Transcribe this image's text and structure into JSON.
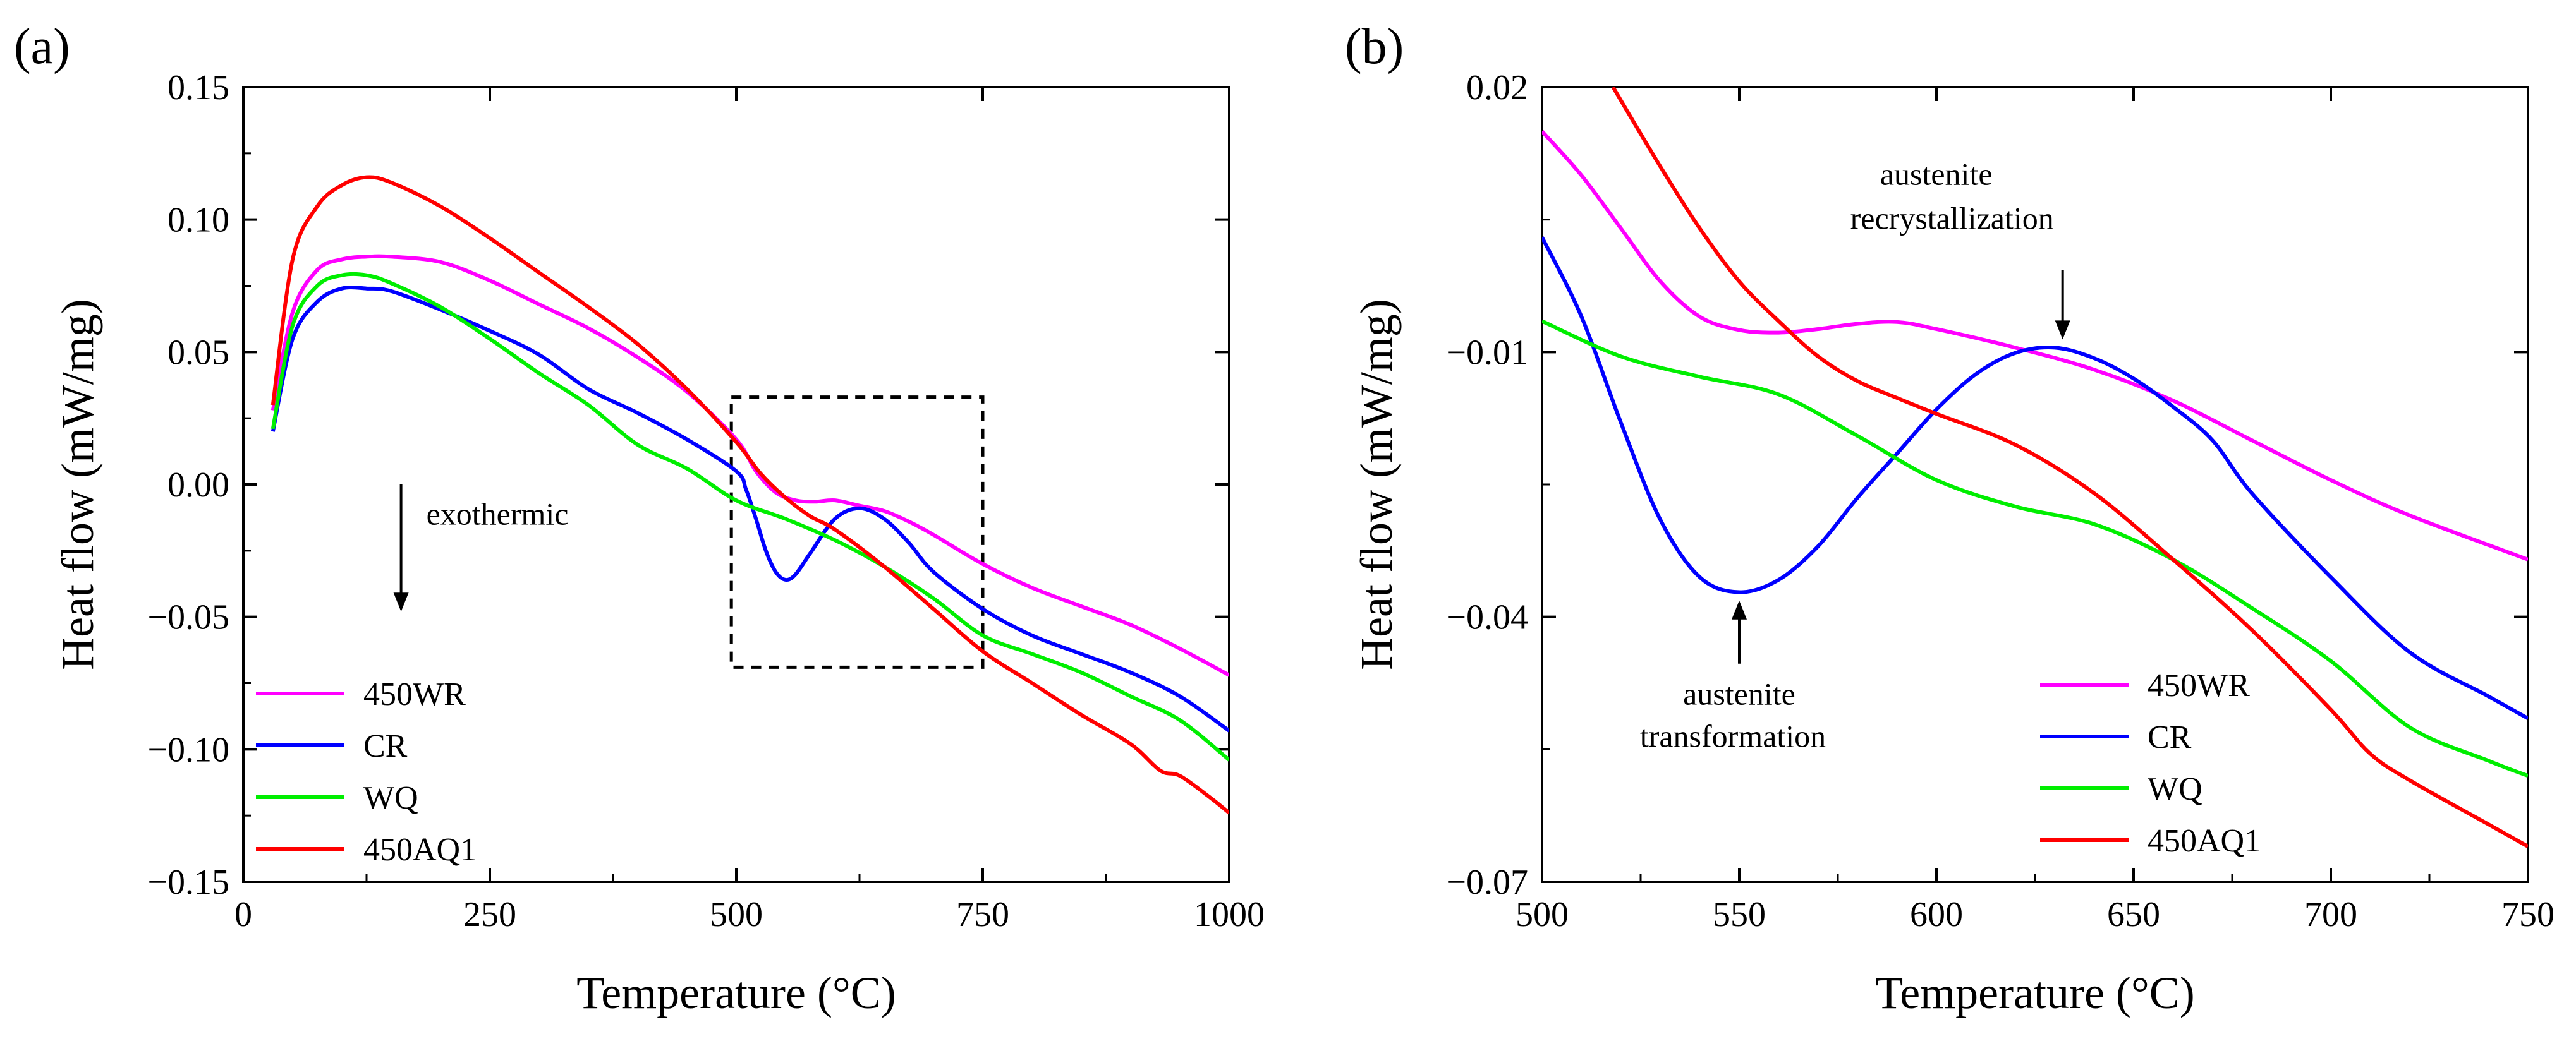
{
  "chart_data": [
    {
      "panel": "(a)",
      "type": "line",
      "xlabel": "Temperature (°C)",
      "ylabel": "Heat flow (mW/mg)",
      "xlim": [
        0,
        1000
      ],
      "ylim": [
        -0.15,
        0.15
      ],
      "x_ticks": [
        0,
        250,
        500,
        750,
        1000
      ],
      "x_tick_labels": [
        "0",
        "250",
        "500",
        "750",
        "1000"
      ],
      "y_ticks": [
        -0.15,
        -0.1,
        -0.05,
        0.0,
        0.05,
        0.1,
        0.15
      ],
      "y_tick_labels": [
        "−0.15",
        "−0.10",
        "−0.05",
        "0.00",
        "0.05",
        "0.10",
        "0.15"
      ],
      "grid": false,
      "legend_position": "bottom-left",
      "annotations": [
        {
          "text": "exothermic",
          "arrow": "down",
          "x": 160,
          "y": -0.013
        }
      ],
      "zoom_box": {
        "x": [
          495,
          750
        ],
        "y": [
          -0.069,
          0.033
        ]
      },
      "series": [
        {
          "name": "450WR",
          "color": "#ff00ff",
          "x": [
            30,
            50,
            75,
            100,
            125,
            150,
            200,
            250,
            300,
            350,
            400,
            450,
            500,
            520,
            540,
            560,
            580,
            600,
            625,
            650,
            675,
            700,
            750,
            800,
            850,
            900,
            950,
            1000
          ],
          "y": [
            0.028,
            0.065,
            0.081,
            0.085,
            0.086,
            0.086,
            0.084,
            0.077,
            0.068,
            0.059,
            0.048,
            0.035,
            0.017,
            0.005,
            -0.003,
            -0.006,
            -0.0065,
            -0.006,
            -0.008,
            -0.01,
            -0.014,
            -0.019,
            -0.03,
            -0.039,
            -0.046,
            -0.053,
            -0.062,
            -0.072
          ]
        },
        {
          "name": "CR",
          "color": "#0000ff",
          "x": [
            30,
            50,
            75,
            100,
            125,
            150,
            200,
            250,
            300,
            350,
            400,
            450,
            500,
            510,
            520,
            530,
            540,
            550,
            560,
            575,
            600,
            625,
            650,
            675,
            700,
            750,
            800,
            850,
            900,
            950,
            1000
          ],
          "y": [
            0.02,
            0.055,
            0.069,
            0.074,
            0.074,
            0.073,
            0.066,
            0.058,
            0.049,
            0.036,
            0.027,
            0.017,
            0.005,
            -0.002,
            -0.013,
            -0.025,
            -0.033,
            -0.036,
            -0.034,
            -0.026,
            -0.013,
            -0.009,
            -0.013,
            -0.022,
            -0.033,
            -0.047,
            -0.057,
            -0.064,
            -0.071,
            -0.08,
            -0.093
          ]
        },
        {
          "name": "WQ",
          "color": "#00ee00",
          "x": [
            30,
            50,
            75,
            100,
            125,
            150,
            200,
            250,
            300,
            350,
            400,
            450,
            500,
            550,
            600,
            650,
            700,
            750,
            800,
            850,
            900,
            950,
            1000
          ],
          "y": [
            0.021,
            0.06,
            0.075,
            0.079,
            0.079,
            0.076,
            0.067,
            0.055,
            0.042,
            0.03,
            0.015,
            0.006,
            -0.006,
            -0.013,
            -0.021,
            -0.031,
            -0.043,
            -0.057,
            -0.064,
            -0.071,
            -0.08,
            -0.089,
            -0.104
          ]
        },
        {
          "name": "450AQ1",
          "color": "#ff0000",
          "x": [
            30,
            50,
            75,
            100,
            125,
            150,
            200,
            250,
            300,
            350,
            400,
            450,
            500,
            525,
            550,
            575,
            600,
            650,
            700,
            750,
            800,
            850,
            900,
            930,
            950,
            980,
            1000
          ],
          "y": [
            0.03,
            0.085,
            0.105,
            0.113,
            0.116,
            0.114,
            0.105,
            0.093,
            0.08,
            0.067,
            0.053,
            0.036,
            0.016,
            0.004,
            -0.005,
            -0.012,
            -0.017,
            -0.031,
            -0.047,
            -0.063,
            -0.075,
            -0.087,
            -0.098,
            -0.108,
            -0.11,
            -0.118,
            -0.124
          ]
        }
      ]
    },
    {
      "panel": "(b)",
      "type": "line",
      "xlabel": "Temperature (°C)",
      "ylabel": "Heat flow (mW/mg)",
      "xlim": [
        500,
        750
      ],
      "ylim": [
        -0.07,
        0.02
      ],
      "x_ticks": [
        500,
        550,
        600,
        650,
        700,
        750
      ],
      "x_tick_labels": [
        "500",
        "550",
        "600",
        "650",
        "700",
        "750"
      ],
      "y_ticks": [
        -0.07,
        -0.04,
        -0.01,
        0.02
      ],
      "y_tick_labels": [
        "−0.07",
        "−0.04",
        "−0.01",
        "0.02"
      ],
      "grid": false,
      "legend_position": "bottom-right",
      "annotations": [
        {
          "lines": [
            "austenite",
            "recrystallization"
          ],
          "arrow": "down",
          "x": 632,
          "y": -0.01
        },
        {
          "lines": [
            "austenite",
            "transformation"
          ],
          "arrow": "up",
          "x": 550,
          "y": -0.037
        }
      ],
      "series": [
        {
          "name": "450WR",
          "color": "#ff00ff",
          "x": [
            500,
            510,
            520,
            530,
            540,
            550,
            560,
            570,
            580,
            590,
            600,
            620,
            640,
            660,
            680,
            700,
            720,
            750
          ],
          "y": [
            0.015,
            0.01,
            0.004,
            -0.002,
            -0.006,
            -0.0075,
            -0.0078,
            -0.0074,
            -0.0068,
            -0.0066,
            -0.0074,
            -0.0095,
            -0.012,
            -0.0155,
            -0.02,
            -0.0245,
            -0.0285,
            -0.0335
          ]
        },
        {
          "name": "CR",
          "color": "#0000ff",
          "x": [
            500,
            510,
            520,
            530,
            540,
            550,
            560,
            570,
            580,
            590,
            600,
            610,
            620,
            630,
            640,
            650,
            660,
            670,
            680,
            700,
            720,
            740,
            750
          ],
          "y": [
            0.003,
            -0.006,
            -0.018,
            -0.029,
            -0.0355,
            -0.0372,
            -0.0358,
            -0.032,
            -0.0265,
            -0.0215,
            -0.0165,
            -0.0125,
            -0.0101,
            -0.0095,
            -0.0107,
            -0.013,
            -0.0162,
            -0.02,
            -0.026,
            -0.0355,
            -0.044,
            -0.049,
            -0.0515
          ]
        },
        {
          "name": "WQ",
          "color": "#00ee00",
          "x": [
            500,
            520,
            540,
            560,
            580,
            600,
            620,
            640,
            660,
            680,
            700,
            720,
            740,
            750
          ],
          "y": [
            -0.0065,
            -0.0105,
            -0.0128,
            -0.0148,
            -0.0195,
            -0.0245,
            -0.0275,
            -0.0295,
            -0.0335,
            -0.039,
            -0.045,
            -0.0525,
            -0.0563,
            -0.058
          ]
        },
        {
          "name": "450AQ1",
          "color": "#ff0000",
          "x": [
            518,
            530,
            540,
            550,
            560,
            570,
            580,
            590,
            600,
            620,
            640,
            660,
            680,
            700,
            710,
            720,
            740,
            750
          ],
          "y": [
            0.02,
            0.011,
            0.004,
            -0.002,
            -0.0065,
            -0.0105,
            -0.0133,
            -0.0152,
            -0.017,
            -0.0205,
            -0.026,
            -0.0335,
            -0.0415,
            -0.0505,
            -0.0555,
            -0.0585,
            -0.0635,
            -0.066
          ]
        }
      ]
    }
  ]
}
